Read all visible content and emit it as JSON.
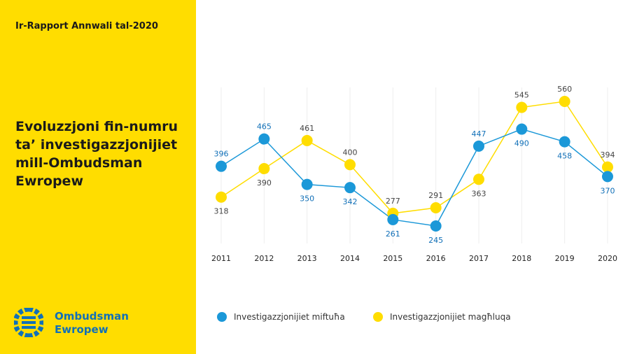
{
  "sidebar": {
    "report_label": "Ir-Rapport Annwali tal-2020",
    "title_lines": [
      "Evoluzzjoni fin-numru",
      "ta’ investigazzjonijiet",
      "mill-Ombudsman",
      "Ewropew"
    ],
    "logo_lines": [
      "Ombudsman",
      "Ewropew"
    ]
  },
  "colors": {
    "sidebar": "#FFDD00",
    "blue": "#1B98D8",
    "yellow": "#FFDD00",
    "label_blue": "#1170B8",
    "logo_blue": "#1170B8"
  },
  "chart_data": {
    "type": "line",
    "title": "Evoluzzjoni fin-numru ta’ investigazzjonijiet mill-Ombudsman Ewropew",
    "categories": [
      "2011",
      "2012",
      "2013",
      "2014",
      "2015",
      "2016",
      "2017",
      "2018",
      "2019",
      "2020"
    ],
    "series": [
      {
        "name": "Investigazzjonijiet miftuħa",
        "color": "#1B98D8",
        "values": [
          396,
          465,
          350,
          342,
          261,
          245,
          447,
          490,
          458,
          370
        ]
      },
      {
        "name": "Investigazzjonijiet magħluqa",
        "color": "#FFDD00",
        "values": [
          318,
          390,
          461,
          400,
          277,
          291,
          363,
          545,
          560,
          394
        ]
      }
    ],
    "ylim": [
      200,
      600
    ],
    "grid": "vertical",
    "legend": "bottom"
  }
}
